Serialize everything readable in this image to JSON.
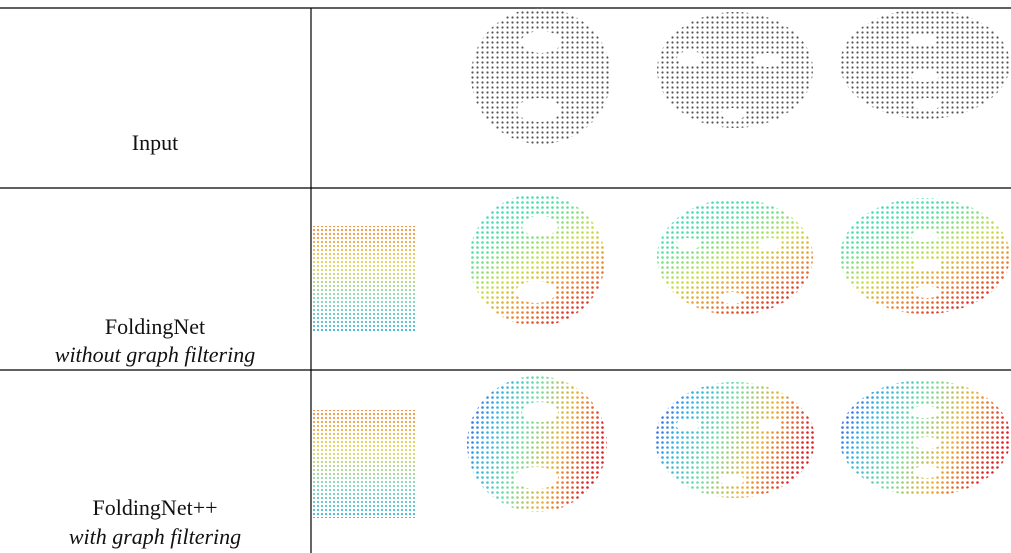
{
  "rows": [
    {
      "label": "Input"
    },
    {
      "label": "FoldingNet",
      "sublabel": "without graph filtering"
    },
    {
      "label": "FoldingNet++",
      "sublabel": "with graph filtering"
    }
  ]
}
